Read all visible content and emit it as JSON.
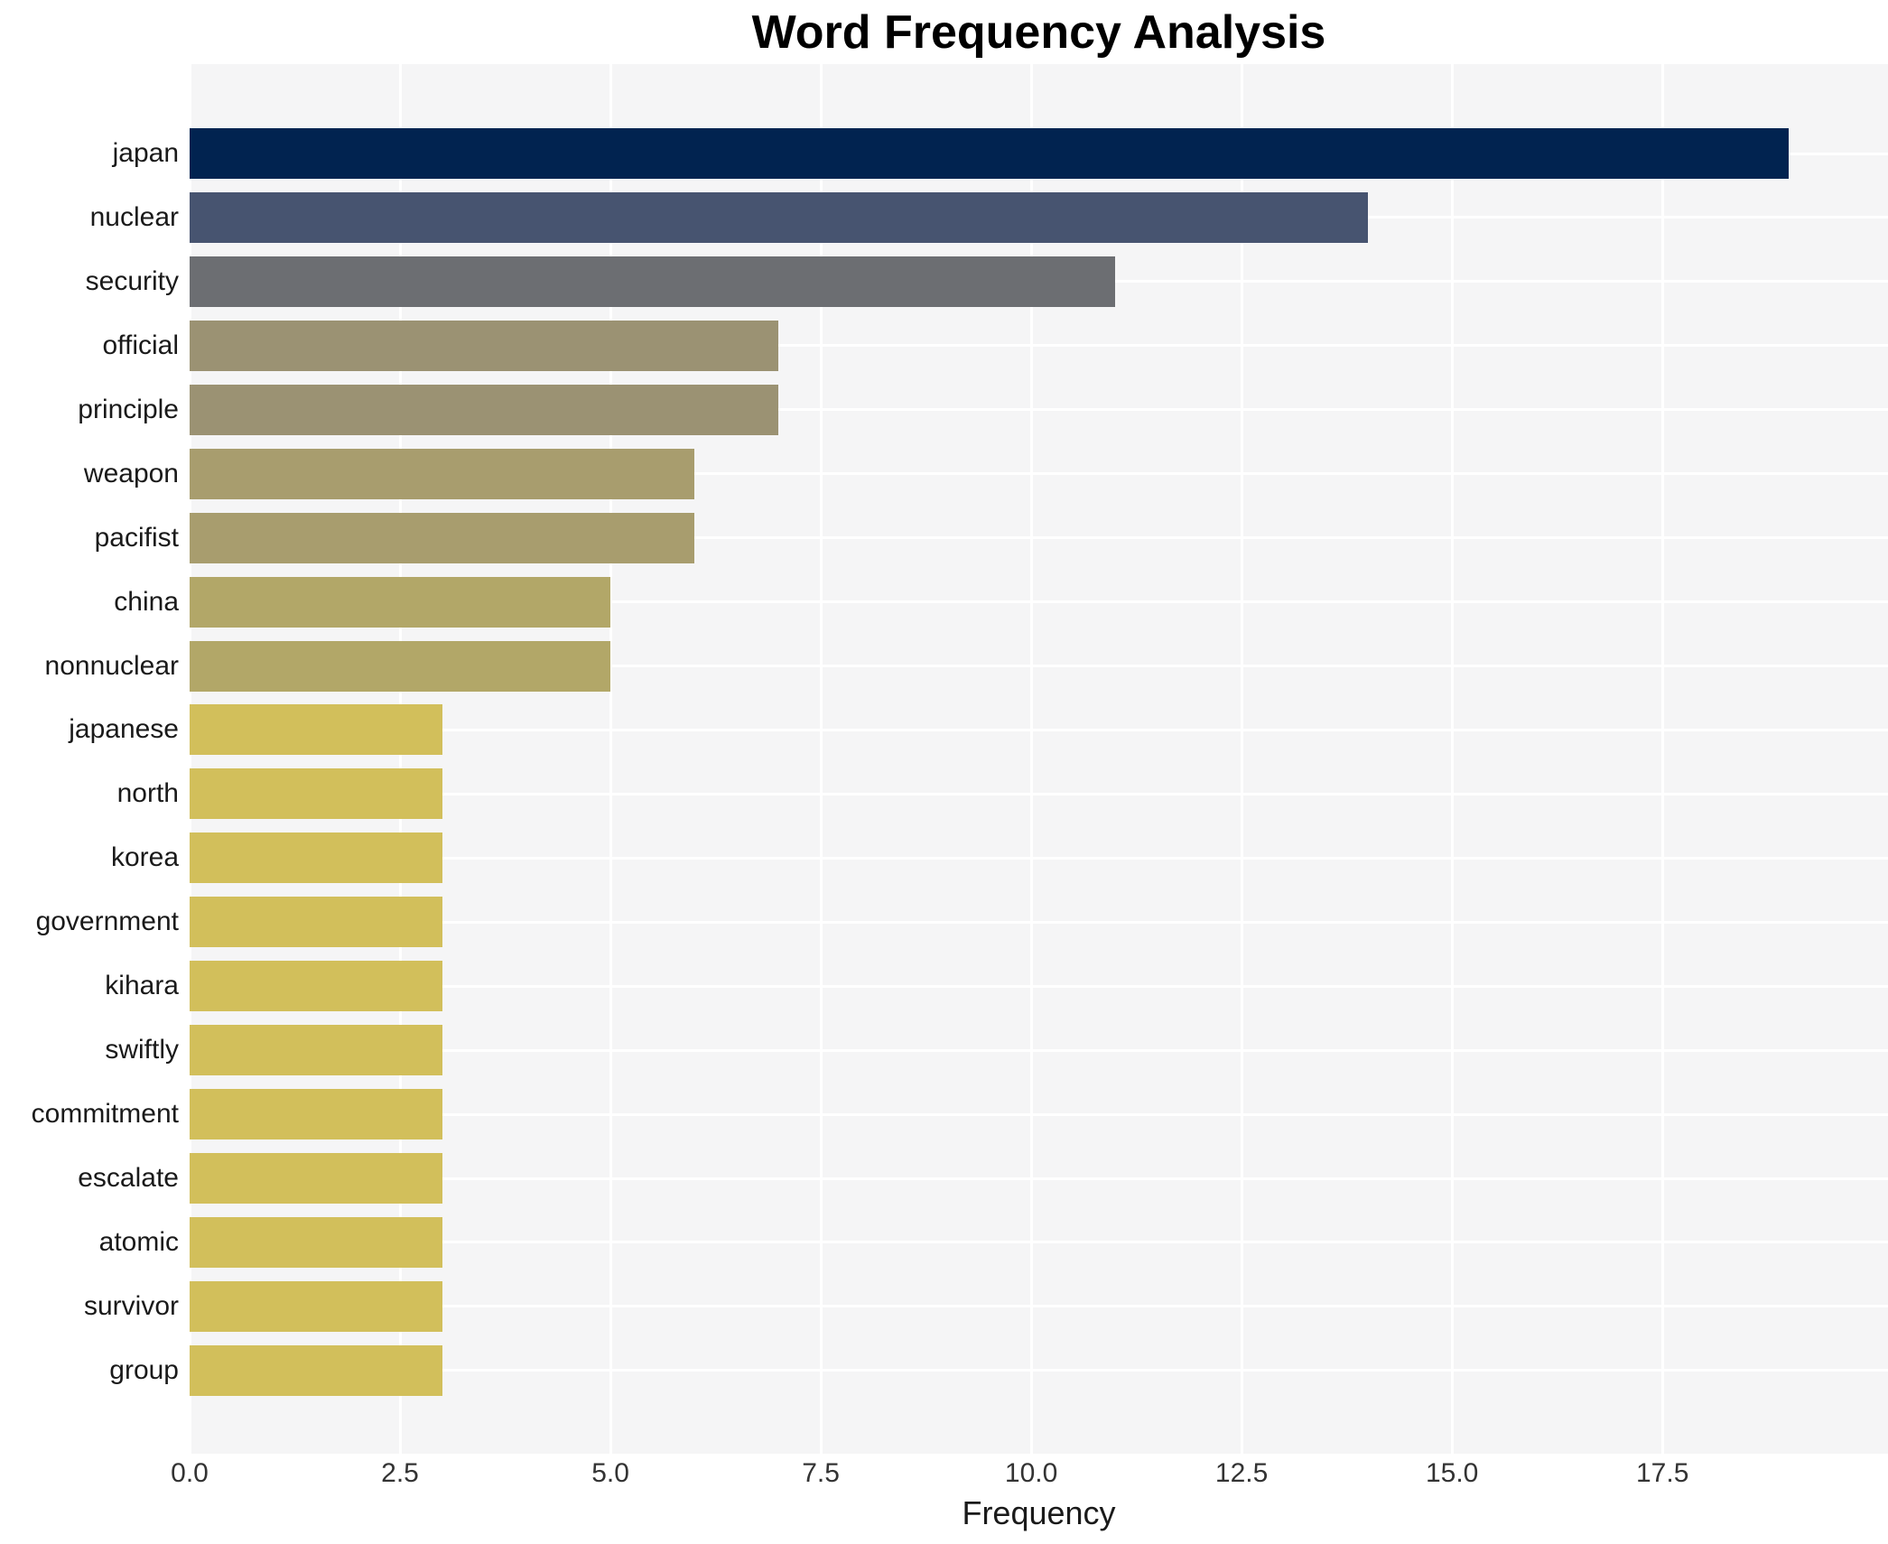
{
  "title": "Word Frequency Analysis",
  "chart_data": {
    "type": "bar",
    "orientation": "horizontal",
    "title": "Word Frequency Analysis",
    "xlabel": "Frequency",
    "ylabel": "",
    "categories": [
      "japan",
      "nuclear",
      "security",
      "official",
      "principle",
      "weapon",
      "pacifist",
      "china",
      "nonnuclear",
      "japanese",
      "north",
      "korea",
      "government",
      "kihara",
      "swiftly",
      "commitment",
      "escalate",
      "atomic",
      "survivor",
      "group"
    ],
    "values": [
      19,
      14,
      11,
      7,
      7,
      6,
      6,
      5,
      5,
      3,
      3,
      3,
      3,
      3,
      3,
      3,
      3,
      3,
      3,
      3
    ],
    "bar_colors": [
      "#012350",
      "#475470",
      "#6c6e72",
      "#9b9273",
      "#9b9273",
      "#a89d6e",
      "#a89d6e",
      "#b2a768",
      "#b2a768",
      "#d2bf5b",
      "#d2bf5b",
      "#d2bf5b",
      "#d2bf5b",
      "#d2bf5b",
      "#d2bf5b",
      "#d2bf5b",
      "#d2bf5b",
      "#d2bf5b",
      "#d2bf5b",
      "#d2bf5b"
    ],
    "xlim": [
      0,
      20.18
    ],
    "xticks": [
      0.0,
      2.5,
      5.0,
      7.5,
      10.0,
      12.5,
      15.0,
      17.5
    ],
    "xtick_labels": [
      "0.0",
      "2.5",
      "5.0",
      "7.5",
      "10.0",
      "12.5",
      "15.0",
      "17.5"
    ],
    "grid": true,
    "legend": false,
    "colors": {
      "plot_background": "#f5f5f6",
      "figure_background": "#ffffff",
      "grid_line": "#ffffff",
      "title_text": "#000000",
      "tick_text": "#333333",
      "label_text": "#1a1a1a"
    }
  }
}
